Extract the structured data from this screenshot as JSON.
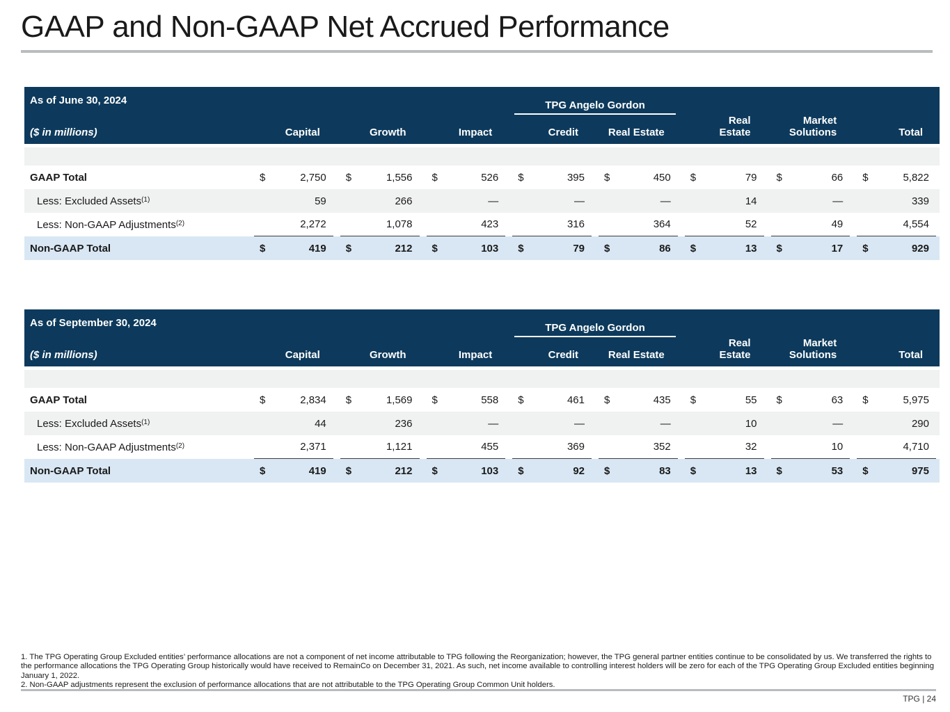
{
  "page": {
    "title": "GAAP and Non-GAAP Net Accrued Performance",
    "footer": "TPG | 24"
  },
  "colors": {
    "header_bg": "#0d3a5c",
    "stripe_row": "#f0f1f1",
    "total_row": "#d8e7f3",
    "rule_gray": "#b9bcbe"
  },
  "tables": [
    {
      "as_of": "As of June 30, 2024",
      "units_label": "($ in millions)",
      "group_header": "TPG Angelo Gordon",
      "columns": [
        "Capital",
        "Growth",
        "Impact",
        "Credit",
        "Real Estate",
        "Real\nEstate",
        "Market\nSolutions",
        "Total"
      ],
      "rows": [
        {
          "label": "GAAP Total",
          "sup": "",
          "cur": "$",
          "kind": "gaap-total",
          "values": [
            "2,750",
            "1,556",
            "526",
            "395",
            "450",
            "79",
            "66",
            "5,822"
          ]
        },
        {
          "label": "Less: Excluded Assets",
          "sup": "(1)",
          "cur": "",
          "kind": "less",
          "values": [
            "59",
            "266",
            "—",
            "—",
            "—",
            "14",
            "—",
            "339"
          ]
        },
        {
          "label": "Less: Non-GAAP Adjustments",
          "sup": "(2)",
          "cur": "",
          "kind": "less-underline",
          "values": [
            "2,272",
            "1,078",
            "423",
            "316",
            "364",
            "52",
            "49",
            "4,554"
          ]
        },
        {
          "label": "Non-GAAP Total",
          "sup": "",
          "cur": "$",
          "kind": "nongaap-total",
          "values": [
            "419",
            "212",
            "103",
            "79",
            "86",
            "13",
            "17",
            "929"
          ]
        }
      ]
    },
    {
      "as_of": "As of September 30, 2024",
      "units_label": "($ in millions)",
      "group_header": "TPG Angelo Gordon",
      "columns": [
        "Capital",
        "Growth",
        "Impact",
        "Credit",
        "Real Estate",
        "Real\nEstate",
        "Market\nSolutions",
        "Total"
      ],
      "rows": [
        {
          "label": "GAAP Total",
          "sup": "",
          "cur": "$",
          "kind": "gaap-total",
          "values": [
            "2,834",
            "1,569",
            "558",
            "461",
            "435",
            "55",
            "63",
            "5,975"
          ]
        },
        {
          "label": "Less: Excluded Assets",
          "sup": "(1)",
          "cur": "",
          "kind": "less",
          "values": [
            "44",
            "236",
            "—",
            "—",
            "—",
            "10",
            "—",
            "290"
          ]
        },
        {
          "label": "Less: Non-GAAP Adjustments",
          "sup": "(2)",
          "cur": "",
          "kind": "less-underline",
          "values": [
            "2,371",
            "1,121",
            "455",
            "369",
            "352",
            "32",
            "10",
            "4,710"
          ]
        },
        {
          "label": "Non-GAAP Total",
          "sup": "",
          "cur": "$",
          "kind": "nongaap-total",
          "values": [
            "419",
            "212",
            "103",
            "92",
            "83",
            "13",
            "53",
            "975"
          ]
        }
      ]
    }
  ],
  "footnotes": [
    "1. The TPG Operating Group Excluded entities’ performance allocations are not a component of net income attributable to TPG following the Reorganization; however, the TPG general partner entities continue to be consolidated by us. We transferred the rights to the performance allocations the TPG Operating Group historically would have received to RemainCo on December 31, 2021. As such, net income available to controlling interest holders will be zero for each of the TPG Operating Group Excluded entities beginning January 1, 2022.",
    "2. Non-GAAP adjustments represent the exclusion of performance allocations that are not attributable to the TPG Operating Group Common Unit holders."
  ]
}
